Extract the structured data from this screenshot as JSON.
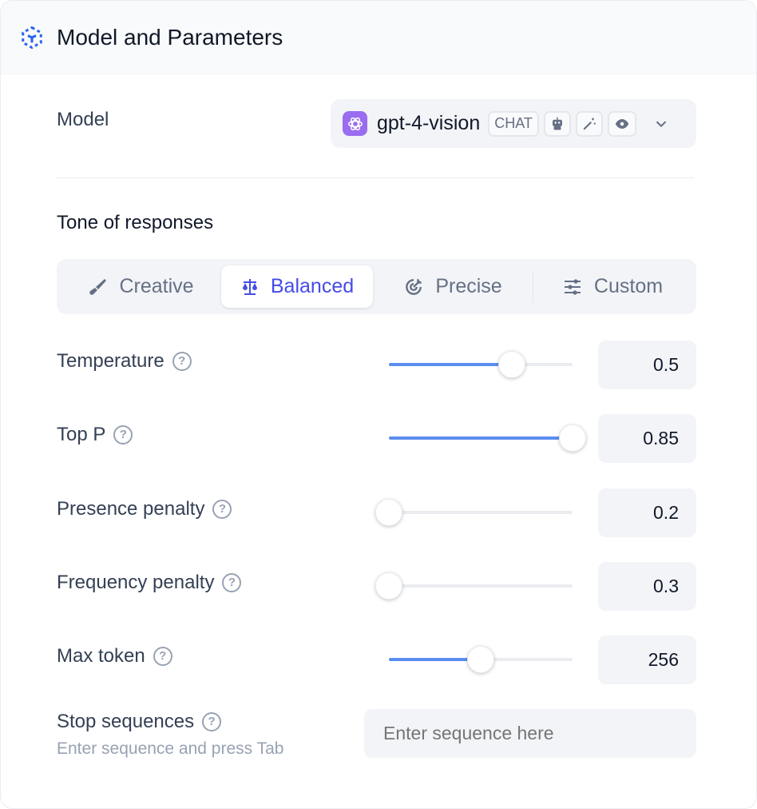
{
  "header": {
    "title": "Model and Parameters",
    "icon": "cube-outline-icon",
    "accent": "#2563eb"
  },
  "model": {
    "label": "Model",
    "selected": "gpt-4-vision",
    "mode_badge": "CHAT",
    "feature_icons": [
      "robot-icon",
      "magic-wand-icon",
      "eye-icon"
    ]
  },
  "tone": {
    "label": "Tone of responses",
    "tabs": [
      {
        "label": "Creative",
        "icon": "brush-icon"
      },
      {
        "label": "Balanced",
        "icon": "scale-icon",
        "active": true
      },
      {
        "label": "Precise",
        "icon": "target-icon"
      },
      {
        "label": "Custom",
        "icon": "sliders-icon"
      }
    ],
    "active_color": "#444ce7"
  },
  "params": [
    {
      "label": "Temperature",
      "value": "0.5",
      "level": 0.67
    },
    {
      "label": "Top P",
      "value": "0.85",
      "level": 1.0
    },
    {
      "label": "Presence penalty",
      "value": "0.2",
      "level": 0.0
    },
    {
      "label": "Frequency penalty",
      "value": "0.3",
      "level": 0.0
    },
    {
      "label": "Max token",
      "value": "256",
      "level": 0.5
    }
  ],
  "stop": {
    "label": "Stop sequences",
    "hint": "Enter sequence and press Tab",
    "placeholder": "Enter sequence here"
  }
}
